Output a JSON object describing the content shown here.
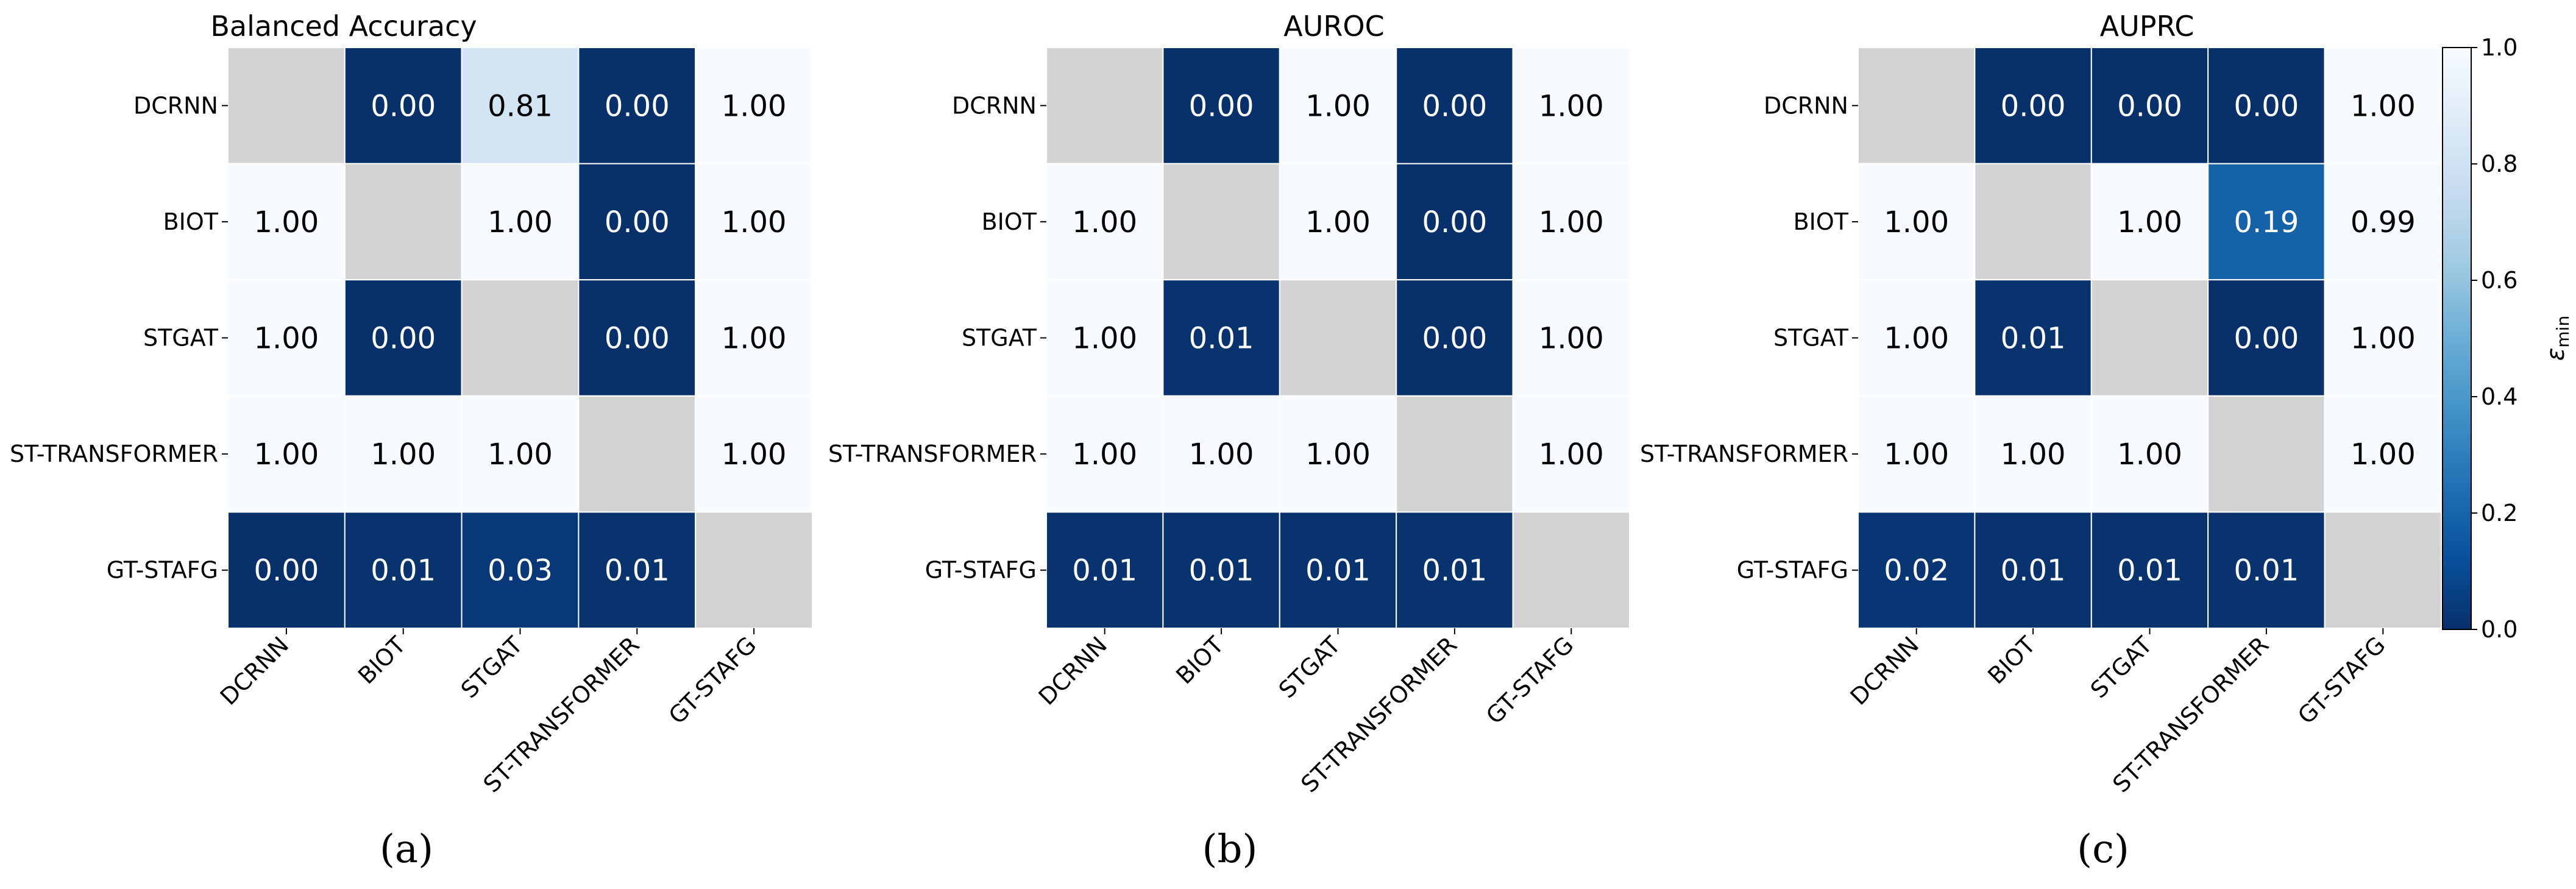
{
  "chart_data": [
    {
      "type": "heatmap",
      "title": "Balanced Accuracy",
      "panel_label": "(a)",
      "rows": [
        "DCRNN",
        "BIOT",
        "STGAT",
        "ST-TRANSFORMER",
        "GT-STAFG"
      ],
      "cols": [
        "DCRNN",
        "BIOT",
        "STGAT",
        "ST-TRANSFORMER",
        "GT-STAFG"
      ],
      "values": [
        [
          null,
          0.0,
          0.81,
          0.0,
          1.0
        ],
        [
          1.0,
          null,
          1.0,
          0.0,
          1.0
        ],
        [
          1.0,
          0.0,
          null,
          0.0,
          1.0
        ],
        [
          1.0,
          1.0,
          1.0,
          null,
          1.0
        ],
        [
          0.0,
          0.01,
          0.03,
          0.01,
          null
        ]
      ]
    },
    {
      "type": "heatmap",
      "title": "AUROC",
      "panel_label": "(b)",
      "rows": [
        "DCRNN",
        "BIOT",
        "STGAT",
        "ST-TRANSFORMER",
        "GT-STAFG"
      ],
      "cols": [
        "DCRNN",
        "BIOT",
        "STGAT",
        "ST-TRANSFORMER",
        "GT-STAFG"
      ],
      "values": [
        [
          null,
          0.0,
          1.0,
          0.0,
          1.0
        ],
        [
          1.0,
          null,
          1.0,
          0.0,
          1.0
        ],
        [
          1.0,
          0.01,
          null,
          0.0,
          1.0
        ],
        [
          1.0,
          1.0,
          1.0,
          null,
          1.0
        ],
        [
          0.01,
          0.01,
          0.01,
          0.01,
          null
        ]
      ]
    },
    {
      "type": "heatmap",
      "title": "AUPRC",
      "panel_label": "(c)",
      "rows": [
        "DCRNN",
        "BIOT",
        "STGAT",
        "ST-TRANSFORMER",
        "GT-STAFG"
      ],
      "cols": [
        "DCRNN",
        "BIOT",
        "STGAT",
        "ST-TRANSFORMER",
        "GT-STAFG"
      ],
      "values": [
        [
          null,
          0.0,
          0.0,
          0.0,
          1.0
        ],
        [
          1.0,
          null,
          1.0,
          0.19,
          0.99
        ],
        [
          1.0,
          0.01,
          null,
          0.0,
          1.0
        ],
        [
          1.0,
          1.0,
          1.0,
          null,
          1.0
        ],
        [
          0.02,
          0.01,
          0.01,
          0.01,
          null
        ]
      ]
    }
  ],
  "colorbar": {
    "label_main": "ε",
    "label_sub": "min",
    "range": [
      0.0,
      1.0
    ],
    "ticks": [
      "0.0",
      "0.2",
      "0.4",
      "0.6",
      "0.8",
      "1.0"
    ],
    "colormap": "Blues_r",
    "missing_color": "#d3d3d3"
  }
}
